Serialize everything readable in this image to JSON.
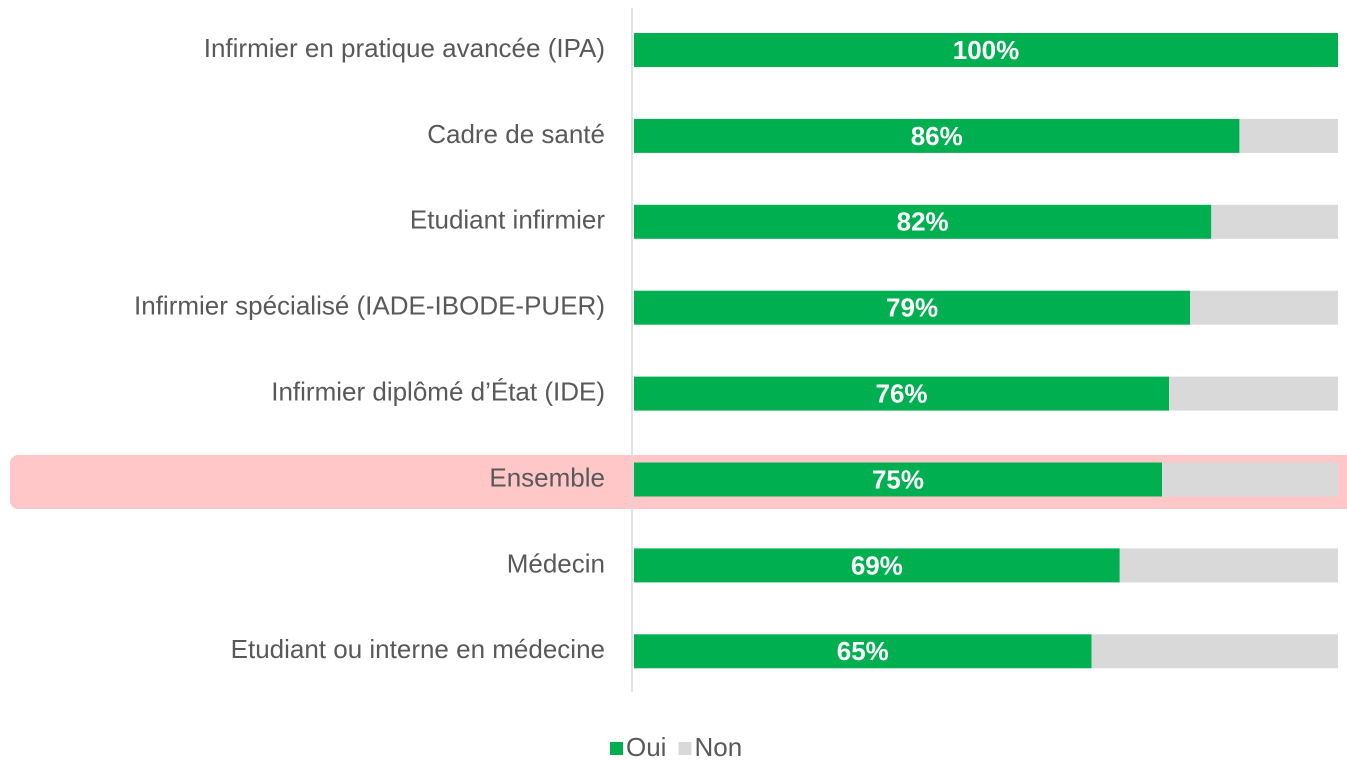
{
  "chart_data": {
    "type": "stacked_bar_horizontal",
    "categories": [
      "Infirmier en pratique avancée (IPA)",
      "Cadre de santé",
      "Etudiant infirmier",
      "Infirmier spécialisé (IADE-IBODE-PUER)",
      "Infirmier diplômé d’État (IDE)",
      "Ensemble",
      "Médecin",
      "Etudiant ou interne en médecine"
    ],
    "series": [
      {
        "name": "Oui",
        "color": "#00b050",
        "values": [
          100,
          86,
          82,
          79,
          76,
          75,
          69,
          65
        ],
        "value_labels": [
          "100%",
          "86%",
          "82%",
          "79%",
          "76%",
          "75%",
          "69%",
          "65%"
        ]
      },
      {
        "name": "Non",
        "color": "#d9d9d9",
        "values": [
          0,
          14,
          18,
          21,
          24,
          25,
          31,
          35
        ]
      }
    ],
    "xlim": [
      0,
      100
    ],
    "legend": "bottom"
  }
}
